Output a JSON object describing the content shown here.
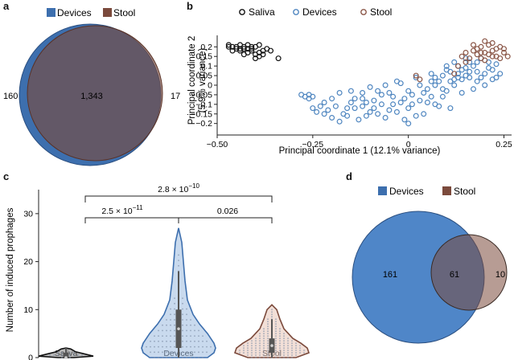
{
  "panel_labels": {
    "a": "a",
    "b": "b",
    "c": "c",
    "d": "d"
  },
  "colors": {
    "devices": "#3d6fae",
    "devices_light": "#9dbce0",
    "stool": "#7b4a3c",
    "overlap": "#8a7380",
    "saliva": "#111111",
    "box": "#555555"
  },
  "chart_data": [
    {
      "id": "a",
      "type": "venn",
      "legend": [
        "Devices",
        "Stool"
      ],
      "sets": [
        {
          "name": "Devices",
          "only": "160"
        },
        {
          "name": "Stool",
          "only": "17"
        }
      ],
      "intersection": "1,343"
    },
    {
      "id": "b",
      "type": "scatter",
      "xlabel": "Principal coordinate 1 (12.1% variance)",
      "ylabel": "Principal coordinate 2",
      "ylabel2": "(5.9% variance)",
      "xlim": [
        -0.5,
        0.27
      ],
      "ylim": [
        -0.26,
        0.26
      ],
      "xticks": [
        -0.5,
        -0.25,
        0,
        0.25
      ],
      "xtick_labels": [
        "−0.50",
        "−0.25",
        "0",
        "0.25"
      ],
      "yticks": [
        0.2,
        0.15,
        0.1,
        0.05,
        0,
        -0.05,
        -0.1,
        -0.15,
        -0.2
      ],
      "ytick_labels": [
        "0.2",
        "0.15",
        "0.1",
        "0.05",
        "0",
        "−0.05",
        "−0.1",
        "−0.15",
        "−0.2"
      ],
      "legend": [
        "Saliva",
        "Devices",
        "Stool"
      ],
      "series": [
        {
          "name": "Saliva",
          "points": [
            [
              -0.47,
              0.21
            ],
            [
              -0.46,
              0.2
            ],
            [
              -0.45,
              0.2
            ],
            [
              -0.44,
              0.21
            ],
            [
              -0.43,
              0.2
            ],
            [
              -0.42,
              0.21
            ],
            [
              -0.41,
              0.19
            ],
            [
              -0.4,
              0.2
            ],
            [
              -0.39,
              0.21
            ],
            [
              -0.46,
              0.18
            ],
            [
              -0.44,
              0.18
            ],
            [
              -0.43,
              0.19
            ],
            [
              -0.42,
              0.17
            ],
            [
              -0.41,
              0.18
            ],
            [
              -0.4,
              0.16
            ],
            [
              -0.39,
              0.17
            ],
            [
              -0.38,
              0.18
            ],
            [
              -0.37,
              0.19
            ],
            [
              -0.38,
              0.16
            ],
            [
              -0.45,
              0.19
            ],
            [
              -0.47,
              0.2
            ],
            [
              -0.44,
              0.19
            ],
            [
              -0.42,
              0.19
            ],
            [
              -0.36,
              0.18
            ],
            [
              -0.4,
              0.14
            ],
            [
              -0.43,
              0.16
            ],
            [
              -0.34,
              0.14
            ],
            [
              -0.41,
              0.2
            ],
            [
              -0.39,
              0.15
            ]
          ]
        },
        {
          "name": "Devices",
          "points": [
            [
              -0.28,
              -0.05
            ],
            [
              -0.27,
              -0.06
            ],
            [
              -0.26,
              -0.05
            ],
            [
              -0.25,
              -0.06
            ],
            [
              -0.26,
              -0.07
            ],
            [
              -0.24,
              -0.14
            ],
            [
              -0.23,
              -0.11
            ],
            [
              -0.22,
              -0.15
            ],
            [
              -0.21,
              -0.13
            ],
            [
              -0.22,
              -0.09
            ],
            [
              -0.2,
              -0.17
            ],
            [
              -0.18,
              -0.19
            ],
            [
              -0.17,
              -0.15
            ],
            [
              -0.16,
              -0.12
            ],
            [
              -0.15,
              -0.09
            ],
            [
              -0.14,
              -0.07
            ],
            [
              -0.12,
              -0.04
            ],
            [
              -0.12,
              -0.11
            ],
            [
              -0.11,
              -0.16
            ],
            [
              -0.1,
              -0.14
            ],
            [
              -0.09,
              -0.08
            ],
            [
              -0.08,
              -0.03
            ],
            [
              -0.07,
              -0.1
            ],
            [
              -0.06,
              -0.17
            ],
            [
              -0.05,
              -0.13
            ],
            [
              -0.04,
              -0.06
            ],
            [
              -0.03,
              0.02
            ],
            [
              -0.02,
              -0.09
            ],
            [
              -0.01,
              -0.18
            ],
            [
              0.0,
              -0.12
            ],
            [
              0.01,
              -0.05
            ],
            [
              0.02,
              0.04
            ],
            [
              0.03,
              -0.08
            ],
            [
              0.04,
              -0.15
            ],
            [
              0.05,
              -0.02
            ],
            [
              0.06,
              0.06
            ],
            [
              0.07,
              -0.1
            ],
            [
              0.08,
              0.02
            ],
            [
              0.09,
              -0.06
            ],
            [
              0.1,
              0.08
            ],
            [
              0.11,
              -0.12
            ],
            [
              0.12,
              0.03
            ],
            [
              0.13,
              0.1
            ],
            [
              0.14,
              -0.04
            ],
            [
              0.15,
              0.05
            ],
            [
              0.16,
              0.12
            ],
            [
              0.17,
              -0.02
            ],
            [
              0.18,
              0.07
            ],
            [
              0.19,
              0.14
            ],
            [
              0.2,
              0.0
            ],
            [
              0.21,
              0.09
            ],
            [
              0.22,
              0.03
            ],
            [
              0.23,
              0.11
            ],
            [
              0.24,
              0.06
            ],
            [
              -0.19,
              -0.11
            ],
            [
              -0.13,
              -0.18
            ],
            [
              -0.08,
              -0.15
            ],
            [
              -0.03,
              -0.14
            ],
            [
              0.0,
              -0.2
            ],
            [
              0.02,
              -0.16
            ],
            [
              0.05,
              -0.09
            ],
            [
              0.08,
              -0.11
            ],
            [
              0.1,
              -0.03
            ],
            [
              0.12,
              0.0
            ],
            [
              0.14,
              0.03
            ],
            [
              0.16,
              0.04
            ],
            [
              0.18,
              0.02
            ],
            [
              -0.15,
              -0.03
            ],
            [
              -0.1,
              -0.01
            ],
            [
              -0.06,
              0.0
            ],
            [
              -0.02,
              0.01
            ],
            [
              0.03,
              0.0
            ],
            [
              0.06,
              0.02
            ],
            [
              0.09,
              0.05
            ],
            [
              0.11,
              0.07
            ],
            [
              0.13,
              0.06
            ],
            [
              0.15,
              0.09
            ],
            [
              0.17,
              0.1
            ],
            [
              0.2,
              0.06
            ],
            [
              0.22,
              0.08
            ],
            [
              -0.25,
              -0.12
            ],
            [
              -0.2,
              -0.07
            ],
            [
              -0.16,
              -0.16
            ],
            [
              -0.12,
              -0.07
            ],
            [
              -0.09,
              -0.12
            ],
            [
              -0.05,
              -0.04
            ],
            [
              -0.01,
              -0.07
            ],
            [
              0.04,
              -0.04
            ],
            [
              0.07,
              0.0
            ],
            [
              0.1,
              0.1
            ],
            [
              0.12,
              0.12
            ],
            [
              0.15,
              0.14
            ],
            [
              0.18,
              0.12
            ],
            [
              0.21,
              0.12
            ],
            [
              -0.18,
              -0.04
            ],
            [
              -0.14,
              -0.12
            ],
            [
              -0.07,
              -0.05
            ],
            [
              -0.04,
              -0.1
            ],
            [
              0.01,
              -0.1
            ],
            [
              0.06,
              -0.06
            ],
            [
              0.09,
              -0.02
            ],
            [
              0.11,
              0.02
            ],
            [
              0.14,
              0.08
            ],
            [
              0.19,
              0.04
            ],
            [
              -0.11,
              -0.09
            ],
            [
              0.0,
              -0.03
            ],
            [
              0.07,
              0.04
            ],
            [
              0.13,
              0.04
            ],
            [
              0.16,
              0.07
            ],
            [
              0.23,
              0.04
            ]
          ]
        },
        {
          "name": "Stool",
          "points": [
            [
              0.12,
              0.06
            ],
            [
              0.13,
              0.1
            ],
            [
              0.14,
              0.15
            ],
            [
              0.15,
              0.17
            ],
            [
              0.16,
              0.14
            ],
            [
              0.17,
              0.18
            ],
            [
              0.18,
              0.16
            ],
            [
              0.19,
              0.2
            ],
            [
              0.2,
              0.17
            ],
            [
              0.21,
              0.21
            ],
            [
              0.22,
              0.18
            ],
            [
              0.23,
              0.15
            ],
            [
              0.24,
              0.2
            ],
            [
              0.25,
              0.17
            ],
            [
              0.26,
              0.15
            ],
            [
              0.19,
              0.14
            ],
            [
              0.2,
              0.13
            ],
            [
              0.22,
              0.22
            ],
            [
              0.18,
              0.19
            ],
            [
              0.21,
              0.16
            ],
            [
              0.23,
              0.19
            ],
            [
              0.15,
              0.12
            ],
            [
              0.24,
              0.14
            ],
            [
              0.17,
              0.21
            ],
            [
              0.02,
              0.05
            ],
            [
              0.03,
              0.03
            ],
            [
              0.2,
              0.23
            ],
            [
              0.25,
              0.19
            ],
            [
              0.19,
              0.17
            ],
            [
              0.22,
              0.15
            ]
          ]
        }
      ]
    },
    {
      "id": "c",
      "type": "violin",
      "ylabel": "Number of induced prophages",
      "categories": [
        "Saliva",
        "Devices",
        "Stool"
      ],
      "ylim": [
        0,
        35
      ],
      "yticks": [
        0,
        10,
        20,
        30
      ],
      "ytick_labels": [
        "0",
        "10",
        "20",
        "30"
      ],
      "medians": [
        0,
        6,
        2.5
      ],
      "box": [
        [
          0,
          1
        ],
        [
          2,
          10
        ],
        [
          1,
          4
        ]
      ],
      "whiskers": [
        [
          0,
          2
        ],
        [
          0,
          18
        ],
        [
          0,
          8
        ]
      ],
      "max": [
        2,
        27,
        11
      ],
      "annotations": [
        {
          "from": 0,
          "to": 2,
          "label": "2.8 × 10",
          "exp": "−10"
        },
        {
          "from": 0,
          "to": 1,
          "label": "2.5 × 10",
          "exp": "−11"
        },
        {
          "from": 1,
          "to": 2,
          "label": "0.026",
          "exp": ""
        }
      ]
    },
    {
      "id": "d",
      "type": "venn",
      "legend": [
        "Devices",
        "Stool"
      ],
      "sets": [
        {
          "name": "Devices",
          "only": "161"
        },
        {
          "name": "Stool",
          "only": "10"
        }
      ],
      "intersection": "61"
    }
  ]
}
